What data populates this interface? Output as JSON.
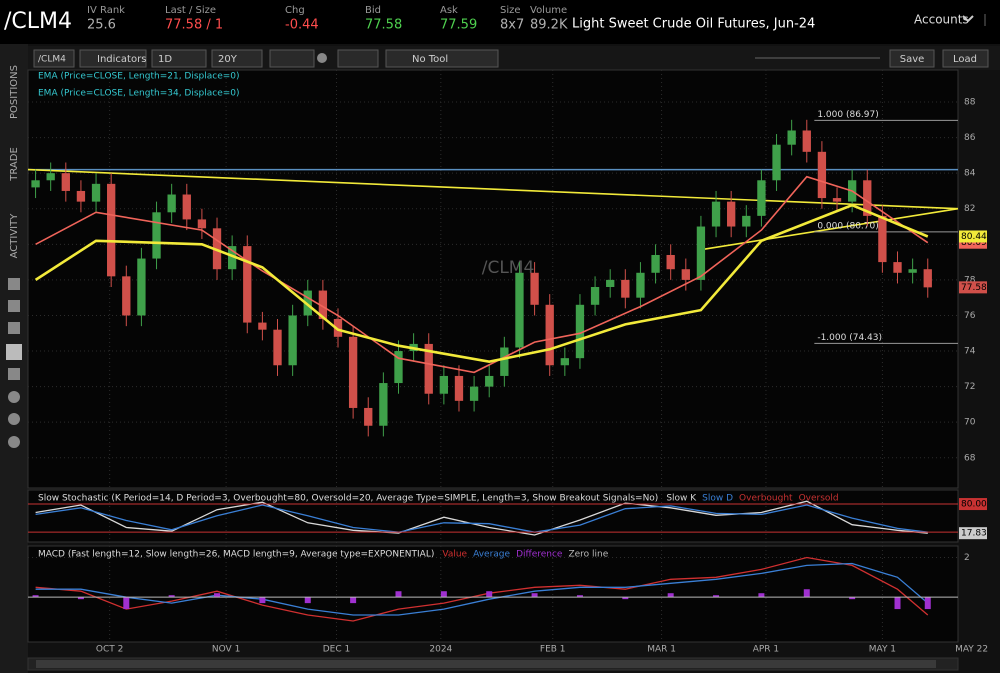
{
  "header": {
    "symbol": "/CLM4",
    "fields": [
      {
        "label": "IV Rank",
        "value": "25.6",
        "color": "#b0b0b0"
      },
      {
        "label": "Last / Size",
        "value": "77.58 / 1",
        "color": "#ff4d4d"
      },
      {
        "label": "Chg",
        "value": "-0.44",
        "color": "#ff4d4d"
      },
      {
        "label": "Bid",
        "value": "77.58",
        "color": "#4fd04f"
      },
      {
        "label": "Ask",
        "value": "77.59",
        "color": "#4fd04f"
      },
      {
        "label": "Size",
        "value": "8x7",
        "color": "#b0b0b0"
      },
      {
        "label": "Volume",
        "value": "89.2K",
        "color": "#b0b0b0"
      }
    ],
    "description": "Light Sweet Crude Oil Futures, Jun-24",
    "accounts": "Accounts"
  },
  "side_tabs": [
    "POSITIONS",
    "TRADE",
    "ACTIVITY"
  ],
  "toolbar": {
    "symbol": "/CLM4",
    "indicators": "Indicators",
    "period": "1D",
    "range": "20Y",
    "drawing": "No Tool",
    "save": "Save",
    "load": "Load"
  },
  "chart_data": [
    {
      "type": "candlestick",
      "watermark": "/CLM4",
      "xlim": [
        -0.5,
        61
      ],
      "xticks": [
        {
          "value": 4.9,
          "label": "OCT 2"
        },
        {
          "value": 12.6,
          "label": "NOV 1"
        },
        {
          "value": 19.9,
          "label": "DEC 1"
        },
        {
          "value": 26.8,
          "label": "2024"
        },
        {
          "value": 34.2,
          "label": "FEB 1"
        },
        {
          "value": 41.4,
          "label": "MAR 1"
        },
        {
          "value": 48.3,
          "label": "APR 1"
        },
        {
          "value": 56.0,
          "label": "MAY 1"
        },
        {
          "value": 61.9,
          "label": "MAY 22"
        }
      ],
      "ylim": [
        66.3,
        89.8
      ],
      "yticks": [
        68,
        70,
        72,
        74,
        76,
        78,
        80,
        82,
        84,
        86,
        88
      ],
      "grid": true,
      "up_color": "#3fa04a",
      "down_color": "#d0504a",
      "open": [
        83.2,
        83.6,
        84.0,
        83.0,
        82.4,
        83.4,
        78.2,
        76.0,
        79.2,
        81.8,
        82.8,
        81.4,
        80.9,
        78.6,
        79.9,
        75.6,
        75.2,
        73.2,
        76.0,
        77.4,
        75.8,
        74.8,
        70.8,
        69.8,
        72.2,
        74.0,
        74.4,
        71.6,
        72.6,
        71.2,
        72.0,
        72.6,
        74.2,
        78.4,
        76.6,
        73.2,
        73.6,
        76.6,
        77.6,
        78.0,
        77.0,
        78.4,
        79.4,
        78.6,
        78.0,
        81.0,
        82.4,
        81.0,
        81.6,
        83.6,
        85.6,
        86.4,
        85.2,
        82.6,
        82.4,
        83.6,
        81.6,
        79.0,
        78.4,
        78.6
      ],
      "high": [
        84.2,
        84.6,
        84.6,
        83.6,
        84.0,
        84.0,
        78.8,
        79.8,
        82.4,
        83.4,
        83.4,
        82.0,
        81.5,
        80.5,
        80.5,
        76.2,
        75.8,
        76.6,
        78.0,
        78.0,
        76.4,
        75.4,
        71.4,
        72.8,
        74.6,
        75.0,
        75.0,
        73.2,
        73.2,
        72.6,
        73.2,
        74.8,
        79.0,
        79.0,
        77.2,
        74.2,
        77.2,
        78.2,
        78.6,
        78.6,
        79.0,
        80.0,
        80.0,
        79.2,
        81.6,
        83.0,
        83.0,
        82.2,
        84.2,
        86.2,
        87.0,
        87.0,
        85.8,
        83.2,
        84.2,
        84.2,
        82.2,
        79.6,
        79.2,
        79.2
      ],
      "low": [
        82.6,
        83.0,
        82.4,
        81.8,
        81.8,
        77.6,
        75.4,
        75.4,
        78.6,
        81.2,
        80.8,
        80.3,
        78.0,
        78.0,
        75.0,
        74.6,
        72.6,
        72.6,
        75.4,
        75.2,
        74.2,
        70.2,
        69.2,
        69.2,
        71.6,
        73.4,
        71.0,
        71.0,
        70.6,
        70.6,
        71.4,
        72.0,
        73.6,
        76.0,
        72.6,
        72.6,
        73.0,
        76.0,
        77.0,
        76.4,
        76.4,
        77.8,
        78.0,
        77.4,
        77.4,
        80.4,
        80.4,
        80.4,
        81.0,
        83.0,
        85.0,
        84.6,
        82.0,
        81.8,
        81.8,
        81.0,
        78.4,
        77.8,
        77.8,
        77.0
      ],
      "close": [
        83.6,
        84.0,
        83.0,
        82.4,
        83.4,
        78.2,
        76.0,
        79.2,
        81.8,
        82.8,
        81.4,
        80.9,
        78.6,
        79.9,
        75.6,
        75.2,
        73.2,
        76.0,
        77.4,
        75.8,
        74.8,
        70.8,
        69.8,
        72.2,
        74.0,
        74.4,
        71.6,
        72.6,
        71.2,
        72.0,
        72.6,
        74.2,
        78.4,
        76.6,
        73.2,
        73.6,
        76.6,
        77.6,
        78.0,
        77.0,
        78.4,
        79.4,
        78.6,
        78.0,
        81.0,
        82.4,
        81.0,
        81.6,
        83.6,
        85.6,
        86.4,
        85.2,
        82.6,
        82.4,
        83.6,
        81.6,
        79.0,
        78.4,
        78.6,
        77.58
      ],
      "series": [
        {
          "name": "EMA (Price=CLOSE, Length=21, Displace=0)",
          "color": "#f0645a",
          "x": [
            0,
            4,
            11,
            15,
            20,
            24,
            29,
            33,
            36,
            40,
            44,
            48,
            51,
            54,
            59
          ],
          "values": [
            80.0,
            81.8,
            80.8,
            78.5,
            76.0,
            73.6,
            72.8,
            74.5,
            75.0,
            76.5,
            78.2,
            80.8,
            83.8,
            83.0,
            80.09
          ]
        },
        {
          "name": "EMA (Price=CLOSE, Length=34, Displace=0)",
          "color": "#f2ea3a",
          "x": [
            0,
            4,
            11,
            15,
            20,
            24,
            30,
            34,
            39,
            44,
            48,
            54,
            59
          ],
          "values": [
            78.0,
            80.2,
            80.0,
            78.7,
            75.2,
            74.3,
            73.4,
            74.1,
            75.5,
            76.3,
            80.2,
            82.2,
            80.44
          ]
        }
      ],
      "trendlines": [
        {
          "color": "#f2ea3a",
          "x": [
            -0.5,
            61
          ],
          "values": [
            84.2,
            82.0
          ]
        },
        {
          "color": "#f2ea3a",
          "x": [
            44,
            61
          ],
          "values": [
            79.7,
            82.0
          ]
        }
      ],
      "hlines": [
        {
          "color": "#5a8fc0",
          "value": 84.2
        }
      ],
      "fib_levels": {
        "x": 51.5,
        "levels": [
          {
            "value": 86.97,
            "label": "1.000 (86.97)"
          },
          {
            "value": 80.7,
            "label": "0.000 (80.70)"
          },
          {
            "value": 74.43,
            "label": "-1.000 (74.43)"
          }
        ]
      }
    },
    {
      "type": "line",
      "title": "Slow Stochastic (K Period=14, D Period=3, Overbought=80, Oversold=20, Average Type=SIMPLE, Length=3, Show Breakout Signals=No)",
      "ylim": [
        -1,
        110
      ],
      "x": [
        0,
        3,
        6,
        9,
        12,
        15,
        18,
        21,
        24,
        27,
        30,
        33,
        36,
        39,
        42,
        45,
        48,
        51,
        54,
        57,
        59
      ],
      "series": [
        {
          "name": "Slow K",
          "color": "#d8d8d8",
          "values": [
            62,
            78,
            30,
            22,
            68,
            84,
            40,
            24,
            18,
            52,
            30,
            14,
            46,
            82,
            72,
            56,
            62,
            86,
            36,
            24,
            17.83
          ]
        },
        {
          "name": "Slow D",
          "color": "#3a7fd5",
          "values": [
            58,
            72,
            45,
            25,
            55,
            78,
            55,
            30,
            20,
            40,
            38,
            20,
            35,
            70,
            76,
            60,
            58,
            78,
            50,
            28,
            20
          ]
        }
      ],
      "levels": [
        {
          "name": "Overbought",
          "value": 80,
          "label": "80.00",
          "color": "#c83232"
        },
        {
          "name": "Oversold",
          "value": 20,
          "color": "#c83232"
        }
      ]
    },
    {
      "type": "macd",
      "title": "MACD (Fast length=12, Slow length=26, MACD length=9, Average type=EXPONENTIAL)",
      "ylim": [
        -2.26,
        2.58
      ],
      "yticks": [
        2
      ],
      "x": [
        0,
        3,
        6,
        9,
        12,
        15,
        18,
        21,
        24,
        27,
        30,
        33,
        36,
        39,
        42,
        45,
        48,
        51,
        54,
        57,
        59
      ],
      "series": [
        {
          "name": "Value",
          "color": "#d03030",
          "values": [
            0.5,
            0.3,
            -0.6,
            -0.2,
            0.3,
            -0.4,
            -0.9,
            -1.2,
            -0.6,
            -0.3,
            0.2,
            0.5,
            0.6,
            0.4,
            0.9,
            1.0,
            1.4,
            2.0,
            1.6,
            0.4,
            -0.9
          ]
        },
        {
          "name": "Average",
          "color": "#3a7fd5",
          "values": [
            0.4,
            0.4,
            0.0,
            -0.3,
            0.1,
            -0.1,
            -0.6,
            -0.9,
            -0.9,
            -0.6,
            -0.1,
            0.3,
            0.5,
            0.5,
            0.7,
            0.9,
            1.2,
            1.6,
            1.7,
            1.0,
            -0.3
          ]
        },
        {
          "name": "Difference",
          "color": "#a030d0",
          "bars": true,
          "values": [
            0.1,
            -0.1,
            -0.6,
            0.1,
            0.2,
            -0.3,
            -0.3,
            -0.3,
            0.3,
            0.3,
            0.3,
            0.2,
            0.1,
            -0.1,
            0.2,
            0.1,
            0.2,
            0.4,
            -0.1,
            -0.6,
            -0.6
          ]
        }
      ],
      "levels": [
        {
          "name": "Zero line",
          "value": 0,
          "color": "#bbbbbb"
        }
      ]
    }
  ]
}
